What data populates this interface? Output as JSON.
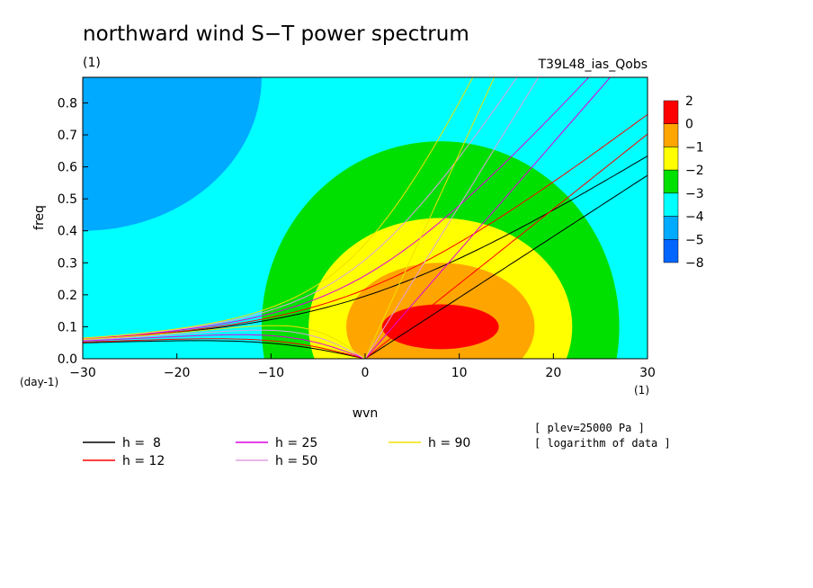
{
  "chart_data": {
    "type": "heatmap",
    "title": "northward wind S−T power spectrum",
    "subtitle": "(1)",
    "run_label": "T39L48_ias_Qobs",
    "xlabel": "wvn",
    "ylabel": "freq",
    "x_unit": "(1)",
    "y_unit": "(day-1)",
    "xlim": [
      -30,
      30
    ],
    "ylim": [
      0,
      0.88
    ],
    "x_ticks": [
      -30,
      -20,
      -10,
      0,
      10,
      20,
      30
    ],
    "y_ticks": [
      0.0,
      0.1,
      0.2,
      0.3,
      0.4,
      0.5,
      0.6,
      0.7,
      0.8
    ],
    "colorbar": {
      "labels": [
        "2",
        "0",
        "−1",
        "−2",
        "−3",
        "−4",
        "−5",
        "−8"
      ],
      "colors": [
        "#ff0000",
        "#ffa500",
        "#ffff00",
        "#00e000",
        "#00ffff",
        "#00aaff",
        "#0066ff"
      ]
    },
    "contour_peak": {
      "x": 8,
      "y": 0.1
    },
    "dispersion_curves": [
      {
        "name": "h =  8",
        "h": 8,
        "color": "#000000"
      },
      {
        "name": "h = 12",
        "h": 12,
        "color": "#ff0000"
      },
      {
        "name": "h = 25",
        "h": 25,
        "color": "#e000e0"
      },
      {
        "name": "h = 50",
        "h": 50,
        "color": "#e0a0e0"
      },
      {
        "name": "h = 90",
        "h": 90,
        "color": "#f0e000"
      }
    ],
    "annotations": [
      "[ plev=25000 Pa ]",
      "[ logarithm of data ]"
    ]
  }
}
